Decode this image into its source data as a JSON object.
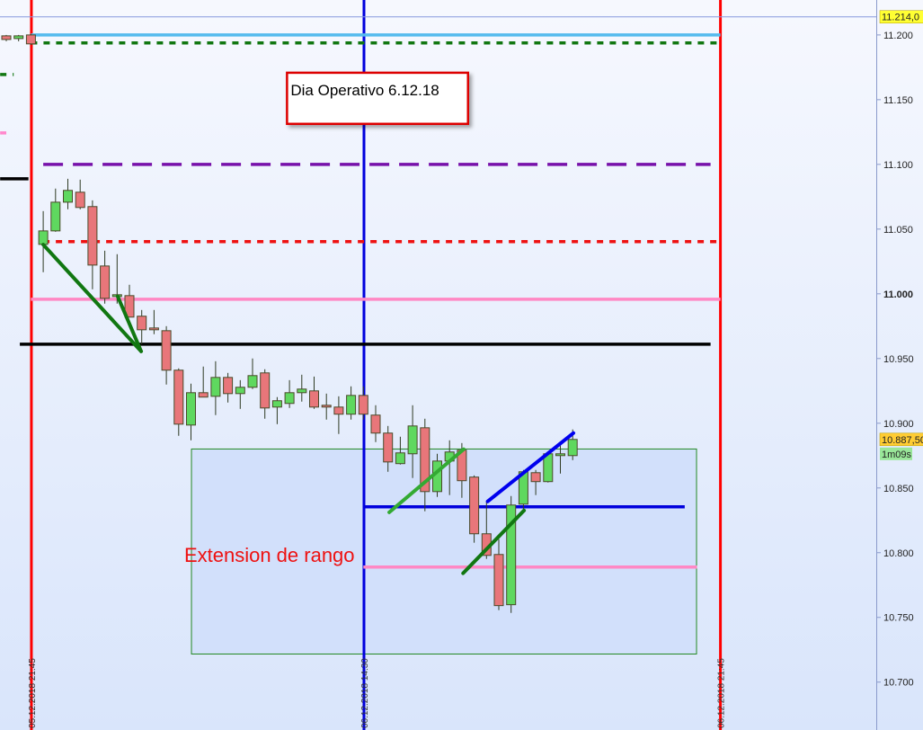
{
  "chart_data": {
    "type": "candlestick",
    "y_axis": {
      "range": [
        10663,
        11227
      ],
      "ticks": [
        10700,
        10750,
        10800,
        10850,
        10900,
        10950,
        11000,
        11050,
        11100,
        11150,
        11200
      ],
      "tick_labels": [
        "10.700",
        "10.750",
        "10.800",
        "10.850",
        "10.900",
        "10.950",
        "11.000",
        "11.050",
        "11.100",
        "11.150",
        "11.200"
      ],
      "bold_tick": "11.000",
      "side": "right"
    },
    "x_axis": {
      "time_labels": [
        {
          "label": "05.12.2018 21:45",
          "candle_index": 2.04,
          "line_color": "#ff0000"
        },
        {
          "label": "06.12.2018 14:30",
          "candle_index": 29.05,
          "line_color": "#0000dd"
        },
        {
          "label": "06.12.2018 21:45",
          "candle_index": 58,
          "line_color": "#ff0000"
        }
      ]
    },
    "colors": {
      "up": "#5fd85f",
      "down": "#e8767a",
      "outline": "#4a4a2a",
      "background_top": "#f6f8fe",
      "background_bottom": "#d9e5fb"
    },
    "candles": [
      [
        11199.3,
        11200,
        11195.1,
        11196.5
      ],
      [
        11197.2,
        11200,
        11195.1,
        11199.3
      ],
      [
        11200,
        11200.7,
        11192.4,
        11193.1
      ],
      [
        11038.2,
        11063.9,
        11016.7,
        11048.6
      ],
      [
        11048.6,
        11081.3,
        11047.9,
        11070.8
      ],
      [
        11070.8,
        11088.9,
        11065.3,
        11079.9
      ],
      [
        11078.5,
        11088.2,
        11065.3,
        11066.7
      ],
      [
        11067.4,
        11072.2,
        11003.5,
        11022.2
      ],
      [
        11021.5,
        11033.3,
        10992.4,
        10996.5
      ],
      [
        10997.9,
        11030.6,
        10992.4,
        10999.3
      ],
      [
        10998.6,
        11007.0,
        10982.0,
        10982.0
      ],
      [
        10982.7,
        10987.5,
        10961.1,
        10972.2
      ],
      [
        10973.6,
        10987.5,
        10968.8,
        10972.2
      ],
      [
        10971.5,
        10975.0,
        10929.9,
        10941.0
      ],
      [
        10941.0,
        10942.4,
        10890.3,
        10899.3
      ],
      [
        10898.6,
        10930.6,
        10886.8,
        10923.6
      ],
      [
        10923.6,
        10943.8,
        10920.2,
        10920.2
      ],
      [
        10920.8,
        10947.9,
        10906.3,
        10935.4
      ],
      [
        10935.4,
        10938.9,
        10916.0,
        10922.9
      ],
      [
        10922.9,
        10933.3,
        10911.1,
        10927.8
      ],
      [
        10927.8,
        10950.0,
        10926.4,
        10936.8
      ],
      [
        10938.9,
        10941.7,
        10903.5,
        10911.8
      ],
      [
        10912.5,
        10920.2,
        10899.3,
        10917.4
      ],
      [
        10915.3,
        10933.3,
        10911.8,
        10923.6
      ],
      [
        10923.6,
        10937.5,
        10916.7,
        10926.4
      ],
      [
        10925.0,
        10936.1,
        10911.1,
        10912.5
      ],
      [
        10913.9,
        10922.9,
        10902.8,
        10912.5
      ],
      [
        10912.5,
        10920.8,
        10891.7,
        10907.0
      ],
      [
        10907.0,
        10928.5,
        10902.8,
        10921.5
      ],
      [
        10921.5,
        10928.5,
        10902.8,
        10907.0
      ],
      [
        10906.3,
        10913.9,
        10885.4,
        10892.4
      ],
      [
        10892.4,
        10897.9,
        10862.5,
        10870.1
      ],
      [
        10868.8,
        10889.6,
        10868.1,
        10877.1
      ],
      [
        10876.4,
        10913.9,
        10857.7,
        10897.9
      ],
      [
        10896.5,
        10903.5,
        10832.0,
        10847.2
      ],
      [
        10847.2,
        10876.4,
        10843.1,
        10870.8
      ],
      [
        10870.8,
        10886.8,
        10844.5,
        10877.8
      ],
      [
        10879.2,
        10884.7,
        10842.4,
        10855.6
      ],
      [
        10858.4,
        10859.7,
        10807.7,
        10814.6
      ],
      [
        10814.6,
        10839.6,
        10795.2,
        10797.9
      ],
      [
        10798.6,
        10810.4,
        10755.6,
        10759.1
      ],
      [
        10759.8,
        10843.8,
        10753.5,
        10836.8
      ],
      [
        10837.5,
        10863.9,
        10833.4,
        10862.5
      ],
      [
        10861.8,
        10863.9,
        10844.5,
        10854.9
      ],
      [
        10854.9,
        10877.8,
        10854.2,
        10876.4
      ],
      [
        10875.0,
        10883.3,
        10861.1,
        10876.4
      ],
      [
        10875.0,
        10895.2,
        10871.5,
        10887.5
      ]
    ],
    "horizontal_lines": [
      {
        "price": 11214,
        "from": -1,
        "to": 72,
        "color": "#8899dd",
        "style": "solid",
        "weight": "thin"
      },
      {
        "price": 11200,
        "from": 2,
        "to": 58,
        "color": "#55bbee",
        "style": "solid",
        "weight": "thick"
      },
      {
        "price": 11193.8,
        "from": 2,
        "to": 58,
        "color": "#117711",
        "style": "dotted",
        "weight": "thick"
      },
      {
        "price": 11169.4,
        "from": -0.5,
        "to": 0.6,
        "color": "#117711",
        "style": "dotted",
        "weight": "thick"
      },
      {
        "price": 11124.3,
        "from": -0.5,
        "to": 0,
        "color": "#ff88cc",
        "style": "solid",
        "weight": "thick"
      },
      {
        "price": 11100,
        "from": 3,
        "to": 57.2,
        "color": "#7711aa",
        "style": "dashed",
        "weight": "thick"
      },
      {
        "price": 11088.9,
        "from": -0.5,
        "to": 1.8,
        "color": "#000000",
        "style": "solid",
        "weight": "thick"
      },
      {
        "price": 11040.3,
        "from": 3,
        "to": 58,
        "color": "#ee1111",
        "style": "dotted",
        "weight": "thick"
      },
      {
        "price": 10995.8,
        "from": 2,
        "to": 58,
        "color": "#ff88c4",
        "style": "solid",
        "weight": "thick"
      },
      {
        "price": 10961.1,
        "from": 1.1,
        "to": 57.2,
        "color": "#000000",
        "style": "solid",
        "weight": "thick"
      },
      {
        "price": 10835.4,
        "from": 29,
        "to": 55.1,
        "color": "#0000dd",
        "style": "solid",
        "weight": "thick"
      },
      {
        "price": 10788.9,
        "from": 29,
        "to": 56.1,
        "color": "#ff88c4",
        "style": "solid",
        "weight": "thick"
      }
    ],
    "trend_lines": [
      {
        "start": [
          3,
          11038
        ],
        "end": [
          10.95,
          10955.6
        ],
        "color": "#117711"
      },
      {
        "start": [
          9.05,
          10998
        ],
        "end": [
          10.95,
          10955.6
        ],
        "color": "#117711"
      },
      {
        "start": [
          31.1,
          10831.2
        ],
        "end": [
          37.15,
          10879.9
        ],
        "color": "#33aa33"
      },
      {
        "start": [
          37.1,
          10784.1
        ],
        "end": [
          42.05,
          10832.6
        ],
        "color": "#117711"
      },
      {
        "start": [
          39.1,
          10839.6
        ],
        "end": [
          46.06,
          10892.4
        ],
        "color": "#0000ee"
      }
    ],
    "range_box": {
      "from": 15.04,
      "to": 56.06,
      "price_top": 10880.1,
      "price_bottom": 10721.7,
      "border": "#228822",
      "fill": "#d2e0fb"
    },
    "annotations": {
      "title_box": {
        "text": "Dia Operativo 6.12.18",
        "from": 22.8,
        "to": 37.5,
        "price_top": 11170.8,
        "price_bottom": 11131.3,
        "border": "#dd0000"
      },
      "range_label": {
        "text": "Extension de rango",
        "at": 14.45,
        "price": 10793,
        "color": "#ee1111"
      }
    },
    "price_badges": [
      {
        "text": "11.214,0",
        "price": 11214,
        "color": "#ffff33"
      },
      {
        "text": "10.887,50",
        "price": 10887.5,
        "color": "#ffcc33"
      }
    ],
    "countdown": {
      "text": "1m09s",
      "color": "#99e699"
    }
  }
}
